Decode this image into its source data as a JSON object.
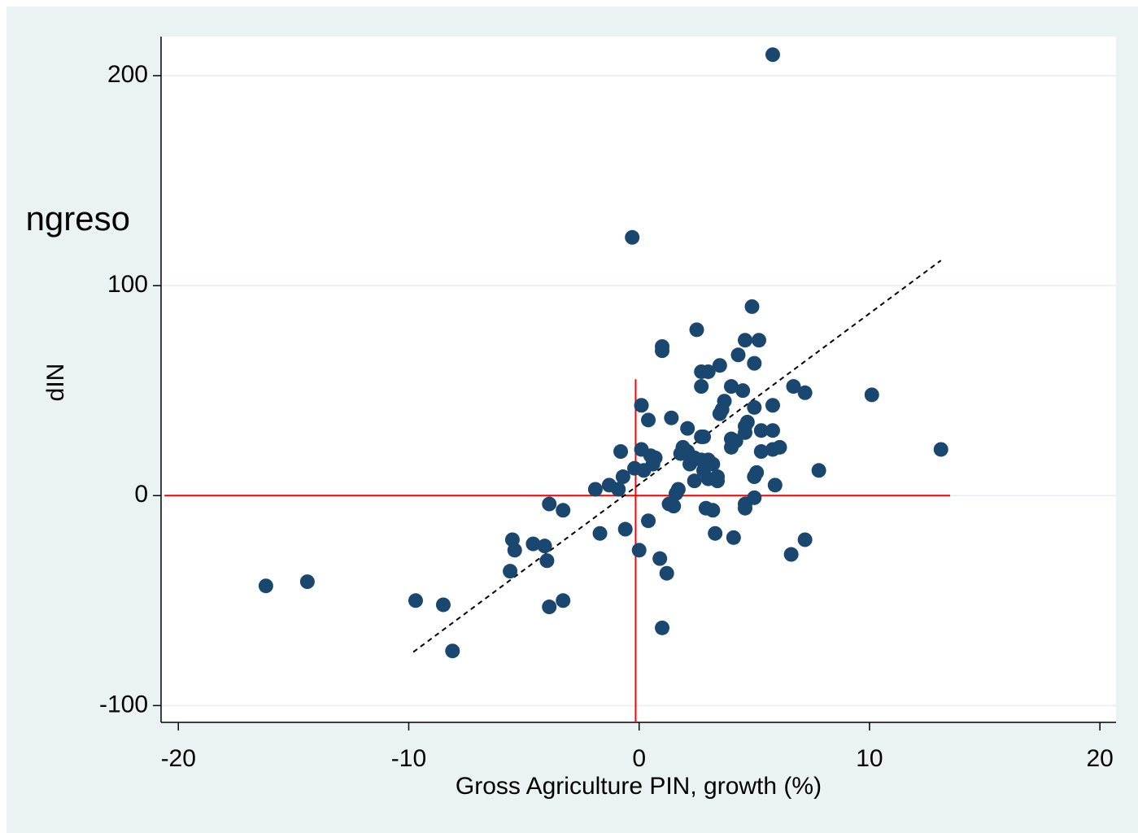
{
  "chart_data": {
    "type": "scatter",
    "annotation": "ngreso",
    "xlabel": "Gross Agriculture PIN, growth (%)",
    "ylabel": "dIN",
    "color": "#1a476f",
    "x": [
      5.8,
      -0.3,
      4.9,
      2.5,
      5.2,
      4.6,
      1.0,
      1.0,
      4.3,
      5.0,
      3.5,
      2.7,
      3.0,
      6.7,
      4.0,
      2.7,
      7.2,
      10.1,
      4.5,
      0.1,
      3.7,
      5.8,
      5.0,
      3.6,
      3.5,
      0.4,
      1.4,
      4.7,
      4.6,
      5.3,
      5.8,
      2.1,
      4.6,
      2.7,
      2.8,
      4.0,
      4.2,
      4.0,
      6.1,
      5.8,
      13.1,
      0.1,
      -0.8,
      1.9,
      5.3,
      2.1,
      0.5,
      0.7,
      1.8,
      2.4,
      3.0,
      2.7,
      3.2,
      2.2,
      0.6,
      -0.2,
      0.2,
      7.8,
      2.8,
      5.1,
      5.0,
      3.0,
      3.4,
      -0.7,
      2.4,
      3.4,
      -1.3,
      -0.9,
      -1.9,
      5.9,
      1.7,
      1.6,
      5.0,
      4.6,
      -3.9,
      1.3,
      1.5,
      2.9,
      3.2,
      -3.3,
      4.6,
      0.4,
      -1.7,
      3.3,
      -0.6,
      -5.5,
      4.1,
      7.2,
      -4.6,
      -4.1,
      -5.4,
      0.0,
      6.6,
      -4.0,
      0.9,
      -5.6,
      1.2,
      -14.4,
      -16.2,
      -9.7,
      -3.3,
      -8.5,
      -3.9,
      1.0,
      -8.1
    ],
    "y": [
      210,
      123,
      90,
      79,
      74,
      74,
      71,
      69,
      67,
      63,
      62,
      59,
      59,
      52,
      52,
      52,
      49,
      48,
      50,
      43,
      45,
      43,
      42,
      41,
      39,
      36,
      37,
      35,
      33,
      31,
      31,
      32,
      30,
      28,
      28,
      27,
      26,
      23,
      23,
      22,
      22,
      22,
      21,
      23,
      21,
      21,
      19,
      18,
      20,
      18,
      17,
      17,
      15,
      15,
      15,
      13,
      12,
      12,
      12,
      11,
      9,
      8,
      9,
      9,
      7,
      7,
      5,
      3,
      3,
      5,
      3,
      1,
      -1,
      -4,
      -4,
      -4,
      -5,
      -6,
      -7,
      -7,
      -6,
      -12,
      -18,
      -18,
      -16,
      -21,
      -20,
      -21,
      -23,
      -24,
      -26,
      -26,
      -28,
      -31,
      -30,
      -36,
      -37,
      -41,
      -43,
      -50,
      -50,
      -52,
      -53,
      -63,
      -74
    ],
    "xlim": [
      -20.75,
      20.7
    ],
    "ylim": [
      -108,
      218.6
    ],
    "xticks": [
      -20,
      -10,
      0,
      10,
      20
    ],
    "yticks": [
      -100,
      0,
      100,
      200
    ],
    "grid": true,
    "hline": {
      "y": 0,
      "x": [
        -20.6,
        13.5
      ],
      "color": "#ff0000"
    },
    "vline": {
      "x": -0.15,
      "y": [
        -108,
        55.4
      ],
      "color": "#ff0000"
    },
    "fit_line": {
      "x": [
        -9.8,
        13.1
      ],
      "y": [
        -74.5,
        112
      ]
    }
  }
}
